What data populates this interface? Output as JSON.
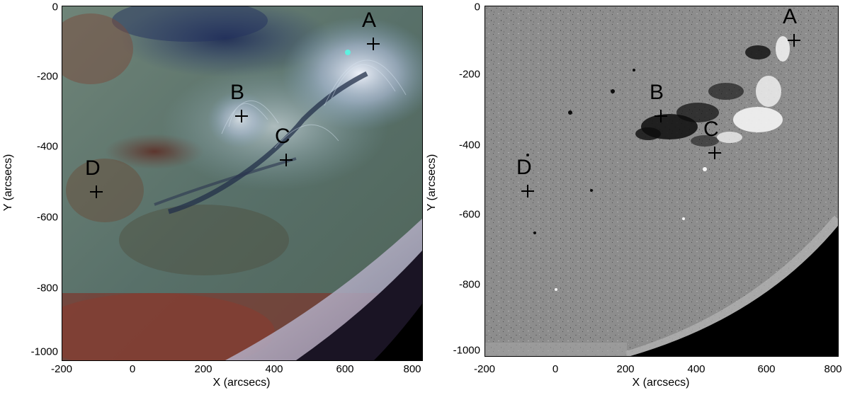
{
  "panels": [
    {
      "image": "AIA composite EUV image",
      "xlabel": "X (arcsecs)",
      "ylabel": "Y (arcsecs)",
      "xticks": [
        "-200",
        "0",
        "200",
        "400",
        "600",
        "800"
      ],
      "yticks": [
        "0",
        "-200",
        "-400",
        "-600",
        "-800",
        "-1000"
      ],
      "markers": [
        "A",
        "B",
        "C",
        "D"
      ]
    },
    {
      "image": "HMI magnetogram",
      "xlabel": "X (arcsecs)",
      "ylabel": "Y (arcsecs)",
      "xticks": [
        "-200",
        "0",
        "200",
        "400",
        "600",
        "800"
      ],
      "yticks": [
        "0",
        "-200",
        "-400",
        "-600",
        "-800",
        "-1000"
      ],
      "markers": [
        "A",
        "B",
        "C",
        "D"
      ]
    }
  ],
  "colors": {
    "euv_background": "#5a6e64",
    "magnetogram_background": "#8c8c8c",
    "off_limb": "#000000"
  }
}
